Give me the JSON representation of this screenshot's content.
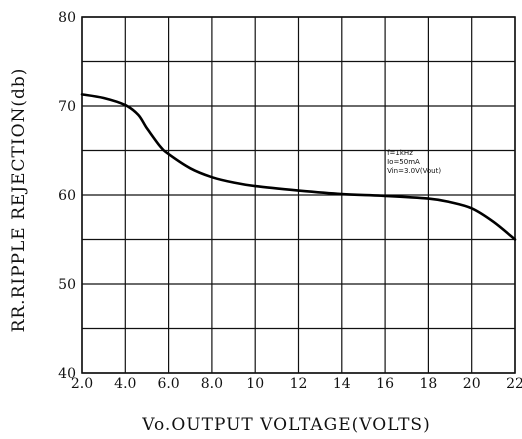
{
  "chart_data": {
    "type": "line",
    "title": "",
    "xlabel": "Vo.OUTPUT VOLTAGE(VOLTS)",
    "ylabel": "RR.RIPPLE REJECTION(db)",
    "xlim": [
      2,
      22
    ],
    "ylim": [
      40,
      80
    ],
    "x_ticks": [
      2,
      4,
      6,
      8,
      10,
      12,
      14,
      16,
      18,
      20,
      22
    ],
    "x_tick_labels": [
      "2.0",
      "4.0",
      "6.0",
      "8.0",
      "10",
      "12",
      "14",
      "16",
      "18",
      "20",
      "22"
    ],
    "y_ticks": [
      40,
      50,
      60,
      70,
      80
    ],
    "y_tick_labels": [
      "40",
      "50",
      "60",
      "70",
      "80"
    ],
    "grid": true,
    "series": [
      {
        "x": [
          2.0,
          3.0,
          4.0,
          4.6,
          5.0,
          5.6,
          6.0,
          7.0,
          8.0,
          9.0,
          10.0,
          12.0,
          14.0,
          16.0,
          18.0,
          19.0,
          20.0,
          21.0,
          22.0
        ],
        "values": [
          71.3,
          70.9,
          70.1,
          69.0,
          67.5,
          65.5,
          64.6,
          63.0,
          62.0,
          61.4,
          61.0,
          60.5,
          60.1,
          59.9,
          59.6,
          59.2,
          58.5,
          57.0,
          55.0
        ]
      }
    ],
    "annotations": [
      {
        "lines": [
          "f=1kHz",
          "Io=50mA",
          "Vin=3.0V(Vout)"
        ]
      }
    ]
  }
}
